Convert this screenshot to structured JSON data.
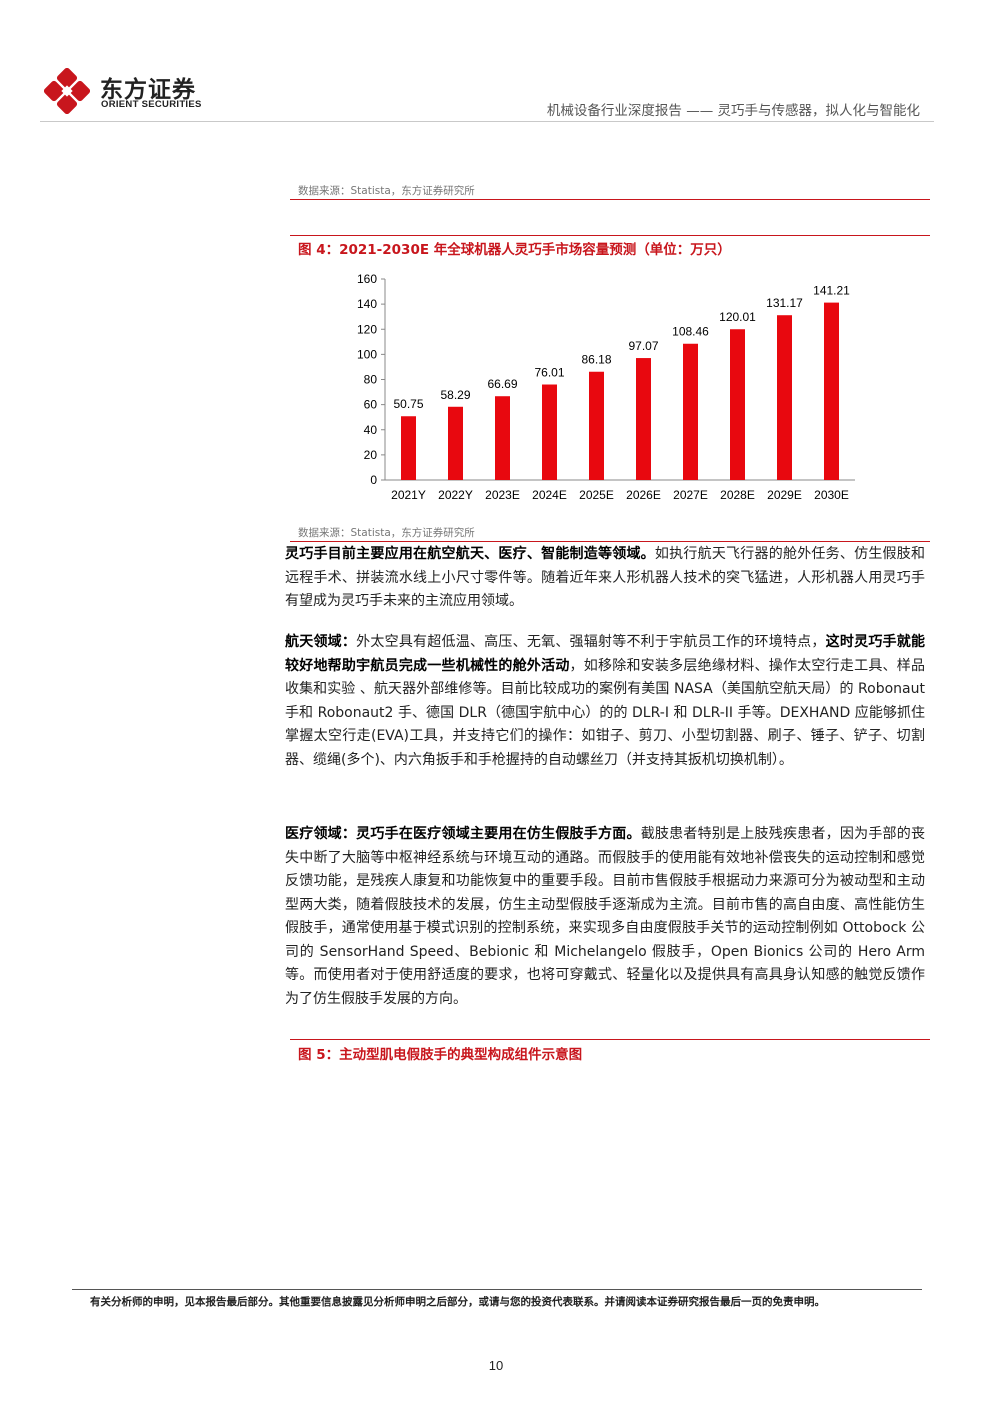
{
  "header": {
    "logo_cn": "东方证券",
    "logo_en": "ORIENT SECURITIES",
    "report_title": "机械设备行业深度报告 —— 灵巧手与传感器，拟人化与智能化",
    "brand_color": "#c8161d"
  },
  "source_top": "数据来源：Statista，东方证券研究所",
  "figure4": {
    "caption": "图 4：2021-2030E 年全球机器人灵巧手市场容量预测（单位：万只）",
    "source": "数据来源：Statista，东方证券研究所"
  },
  "chart_data": {
    "type": "bar",
    "title": "",
    "categories": [
      "2021Y",
      "2022Y",
      "2023E",
      "2024E",
      "2025E",
      "2026E",
      "2027E",
      "2028E",
      "2029E",
      "2030E"
    ],
    "values": [
      50.75,
      58.29,
      66.69,
      76.01,
      86.18,
      97.07,
      108.46,
      120.01,
      131.17,
      141.21
    ],
    "value_labels": [
      "50.75",
      "58.29",
      "66.69",
      "76.01",
      "86.18",
      "97.07",
      "108.46",
      "120.01",
      "131.17",
      "141.21"
    ],
    "yticks": [
      "0",
      "20",
      "40",
      "60",
      "80",
      "100",
      "120",
      "140",
      "160"
    ],
    "ylim": [
      0,
      160
    ],
    "xlabel": "",
    "ylabel": "",
    "grid": false,
    "bar_color": "#e8080f"
  },
  "para1": {
    "bold": "灵巧手目前主要应用在航空航天、医疗、智能制造等领域。",
    "text": "如执行航天飞行器的舱外任务、仿生假肢和远程手术、拼装流水线上小尺寸零件等。随着近年来人形机器人技术的突飞猛进，人形机器人用灵巧手有望成为灵巧手未来的主流应用领域。"
  },
  "para2": {
    "bold1": "航天领域：",
    "text1": "外太空具有超低温、高压、无氧、强辐射等不利于宇航员工作的环境特点，",
    "bold2": "这时灵巧手就能较好地帮助宇航员完成一些机械性的舱外活动",
    "text2": "，如移除和安装多层绝缘材料、操作太空行走工具、样品收集和实验 、航天器外部维修等。目前比较成功的案例有美国 NASA（美国航空航天局）的 Robonaut 手和 Robonaut2 手、德国 DLR（德国宇航中心）的的 DLR-I 和 DLR-II 手等。DEXHAND 应能够抓住掌握太空行走(EVA)工具，并支持它们的操作：如钳子、剪刀、小型切割器、刷子、锤子、铲子、切割器、缆绳(多个)、内六角扳手和手枪握持的自动螺丝刀（并支持其扳机切换机制）。"
  },
  "para3": {
    "bold": "医疗领域：灵巧手在医疗领域主要用在仿生假肢手方面。",
    "text": "截肢患者特别是上肢残疾患者，因为手部的丧失中断了大脑等中枢神经系统与环境互动的通路。而假肢手的使用能有效地补偿丧失的运动控制和感觉反馈功能，是残疾人康复和功能恢复中的重要手段。目前市售假肢手根据动力来源可分为被动型和主动型两大类，随着假肢技术的发展，仿生主动型假肢手逐渐成为主流。目前市售的高自由度、高性能仿生假肢手，通常使用基于模式识别的控制系统，来实现多自由度假肢手关节的运动控制例如 Ottobock 公司的 SensorHand Speed、Bebionic 和 Michelangelo 假肢手，Open Bionics 公司的 Hero Arm 等。而使用者对于使用舒适度的要求，也将可穿戴式、轻量化以及提供具有高具身认知感的触觉反馈作为了仿生假肢手发展的方向。"
  },
  "figure5": {
    "caption": "图 5：主动型肌电假肢手的典型构成组件示意图"
  },
  "footer": {
    "disclaimer": "有关分析师的申明，见本报告最后部分。其他重要信息披露见分析师申明之后部分，或请与您的投资代表联系。并请阅读本证券研究报告最后一页的免责申明。",
    "page_number": "10"
  }
}
